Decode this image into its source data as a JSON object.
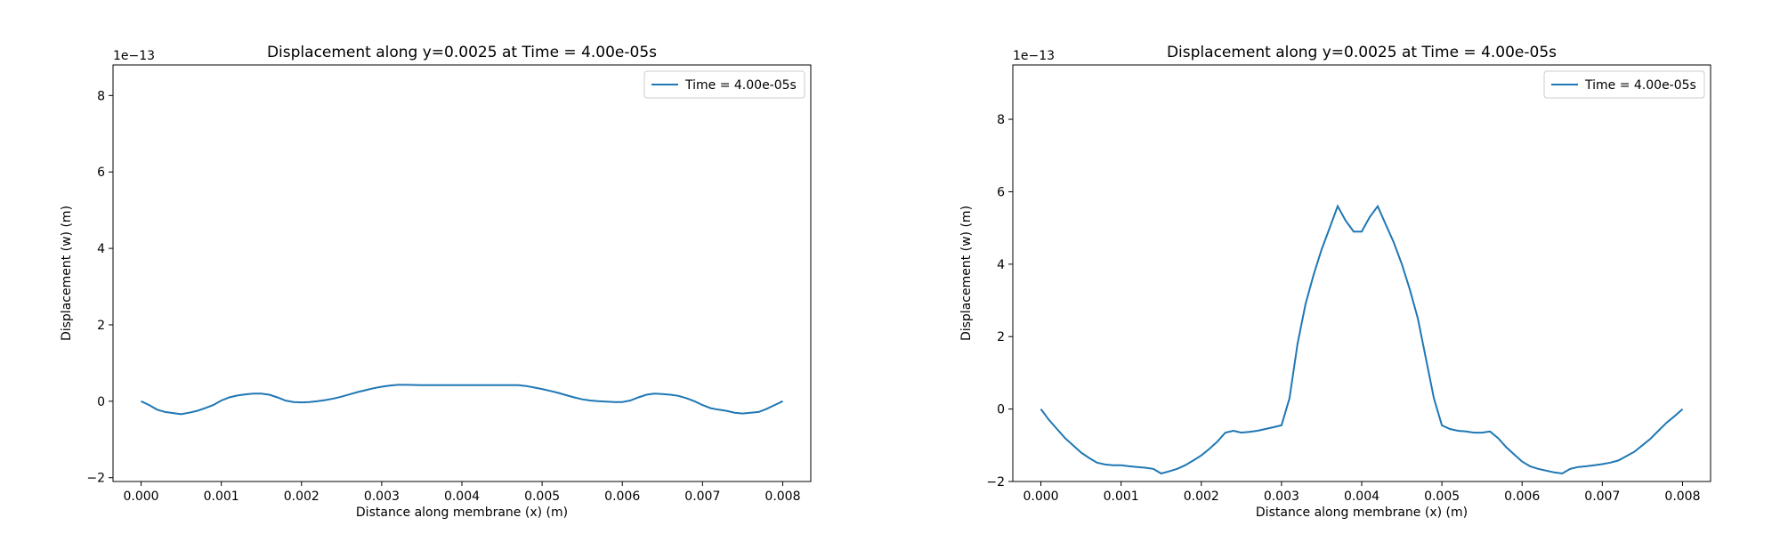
{
  "colors": {
    "series": "#1f77b4",
    "axes": "#000000",
    "background": "#ffffff",
    "legend_border": "#cccccc"
  },
  "chart_data": [
    {
      "type": "line",
      "title": "Displacement along y=0.0025 at Time = 4.00e-05s",
      "xlabel": "Distance along membrane (x) (m)",
      "ylabel": "Displacement (w) (m)",
      "y_offset_label": "1e−13",
      "xlim": [
        -0.00035,
        0.00835
      ],
      "ylim": [
        -2.1,
        8.8
      ],
      "grid": false,
      "legend_position": "top-right",
      "xticks": [
        0.0,
        0.001,
        0.002,
        0.003,
        0.004,
        0.005,
        0.006,
        0.007,
        0.008
      ],
      "xtick_labels": [
        "0.000",
        "0.001",
        "0.002",
        "0.003",
        "0.004",
        "0.005",
        "0.006",
        "0.007",
        "0.008"
      ],
      "yticks": [
        -2,
        0,
        2,
        4,
        6,
        8
      ],
      "ytick_labels": [
        "−2",
        "0",
        "2",
        "4",
        "6",
        "8"
      ],
      "series": [
        {
          "name": "Time = 4.00e-05s",
          "x": [
            0.0,
            0.0001,
            0.0002,
            0.0003,
            0.0004,
            0.0005,
            0.0006,
            0.0007,
            0.0008,
            0.0009,
            0.001,
            0.0011,
            0.0012,
            0.0013,
            0.0014,
            0.0015,
            0.0016,
            0.0017,
            0.0018,
            0.0019,
            0.002,
            0.0021,
            0.0022,
            0.0023,
            0.0024,
            0.0025,
            0.0026,
            0.0027,
            0.0028,
            0.0029,
            0.003,
            0.0031,
            0.0032,
            0.0033,
            0.0035,
            0.0037,
            0.004,
            0.0043,
            0.0045,
            0.0047,
            0.0048,
            0.0049,
            0.005,
            0.0051,
            0.0052,
            0.0053,
            0.0054,
            0.0055,
            0.0056,
            0.0057,
            0.0058,
            0.0059,
            0.006,
            0.0061,
            0.0062,
            0.0063,
            0.0064,
            0.0065,
            0.0066,
            0.0067,
            0.0068,
            0.0069,
            0.007,
            0.0071,
            0.0072,
            0.0073,
            0.0074,
            0.0075,
            0.0076,
            0.0077,
            0.0078,
            0.0079,
            0.008
          ],
          "values": [
            0.0,
            -0.1,
            -0.22,
            -0.28,
            -0.31,
            -0.34,
            -0.3,
            -0.25,
            -0.18,
            -0.1,
            0.02,
            0.1,
            0.15,
            0.18,
            0.2,
            0.2,
            0.17,
            0.1,
            0.02,
            -0.02,
            -0.03,
            -0.02,
            0.0,
            0.03,
            0.07,
            0.12,
            0.18,
            0.24,
            0.29,
            0.34,
            0.38,
            0.41,
            0.43,
            0.43,
            0.42,
            0.42,
            0.42,
            0.42,
            0.42,
            0.42,
            0.4,
            0.36,
            0.32,
            0.27,
            0.22,
            0.16,
            0.1,
            0.05,
            0.02,
            0.0,
            -0.01,
            -0.02,
            -0.02,
            0.02,
            0.1,
            0.17,
            0.2,
            0.19,
            0.17,
            0.14,
            0.08,
            0.0,
            -0.1,
            -0.18,
            -0.22,
            -0.25,
            -0.3,
            -0.32,
            -0.3,
            -0.28,
            -0.2,
            -0.1,
            0.0
          ]
        }
      ]
    },
    {
      "type": "line",
      "title": "Displacement along y=0.0025 at Time = 4.00e-05s",
      "xlabel": "Distance along membrane (x) (m)",
      "ylabel": "Displacement (w) (m)",
      "y_offset_label": "1e−13",
      "xlim": [
        -0.00035,
        0.00835
      ],
      "ylim": [
        -2.0,
        9.5
      ],
      "grid": false,
      "legend_position": "top-right",
      "xticks": [
        0.0,
        0.001,
        0.002,
        0.003,
        0.004,
        0.005,
        0.006,
        0.007,
        0.008
      ],
      "xtick_labels": [
        "0.000",
        "0.001",
        "0.002",
        "0.003",
        "0.004",
        "0.005",
        "0.006",
        "0.007",
        "0.008"
      ],
      "yticks": [
        -2,
        0,
        2,
        4,
        6,
        8
      ],
      "ytick_labels": [
        "−2",
        "0",
        "2",
        "4",
        "6",
        "8"
      ],
      "series": [
        {
          "name": "Time = 4.00e-05s",
          "x": [
            0.0,
            0.0001,
            0.0002,
            0.0003,
            0.0004,
            0.0005,
            0.0006,
            0.0007,
            0.0008,
            0.0009,
            0.001,
            0.0011,
            0.0012,
            0.0013,
            0.0014,
            0.0015,
            0.0016,
            0.0017,
            0.0018,
            0.0019,
            0.002,
            0.0021,
            0.0022,
            0.0023,
            0.0024,
            0.0025,
            0.0026,
            0.0027,
            0.0028,
            0.0029,
            0.003,
            0.0031,
            0.0032,
            0.0033,
            0.0034,
            0.0035,
            0.0036,
            0.0037,
            0.0038,
            0.0039,
            0.004,
            0.0041,
            0.0042,
            0.0043,
            0.0044,
            0.0045,
            0.0046,
            0.0047,
            0.0048,
            0.0049,
            0.005,
            0.0051,
            0.0052,
            0.0053,
            0.0054,
            0.0055,
            0.0056,
            0.0057,
            0.0058,
            0.0059,
            0.006,
            0.0061,
            0.0062,
            0.0063,
            0.0064,
            0.0065,
            0.0066,
            0.0067,
            0.0068,
            0.0069,
            0.007,
            0.0071,
            0.0072,
            0.0073,
            0.0074,
            0.0075,
            0.0076,
            0.0077,
            0.0078,
            0.0079,
            0.008
          ],
          "values": [
            0.0,
            -0.3,
            -0.55,
            -0.8,
            -1.0,
            -1.2,
            -1.35,
            -1.48,
            -1.53,
            -1.55,
            -1.55,
            -1.58,
            -1.6,
            -1.62,
            -1.65,
            -1.78,
            -1.72,
            -1.65,
            -1.55,
            -1.42,
            -1.28,
            -1.1,
            -0.9,
            -0.65,
            -0.6,
            -0.65,
            -0.63,
            -0.6,
            -0.55,
            -0.5,
            -0.45,
            0.3,
            1.8,
            2.9,
            3.7,
            4.4,
            5.0,
            5.6,
            5.2,
            4.9,
            4.9,
            5.3,
            5.6,
            5.1,
            4.6,
            4.0,
            3.3,
            2.5,
            1.4,
            0.3,
            -0.45,
            -0.55,
            -0.6,
            -0.62,
            -0.65,
            -0.65,
            -0.62,
            -0.8,
            -1.05,
            -1.25,
            -1.45,
            -1.58,
            -1.65,
            -1.7,
            -1.75,
            -1.78,
            -1.65,
            -1.6,
            -1.58,
            -1.55,
            -1.52,
            -1.48,
            -1.42,
            -1.3,
            -1.18,
            -1.0,
            -0.82,
            -0.6,
            -0.38,
            -0.2,
            0.0
          ]
        }
      ]
    }
  ]
}
